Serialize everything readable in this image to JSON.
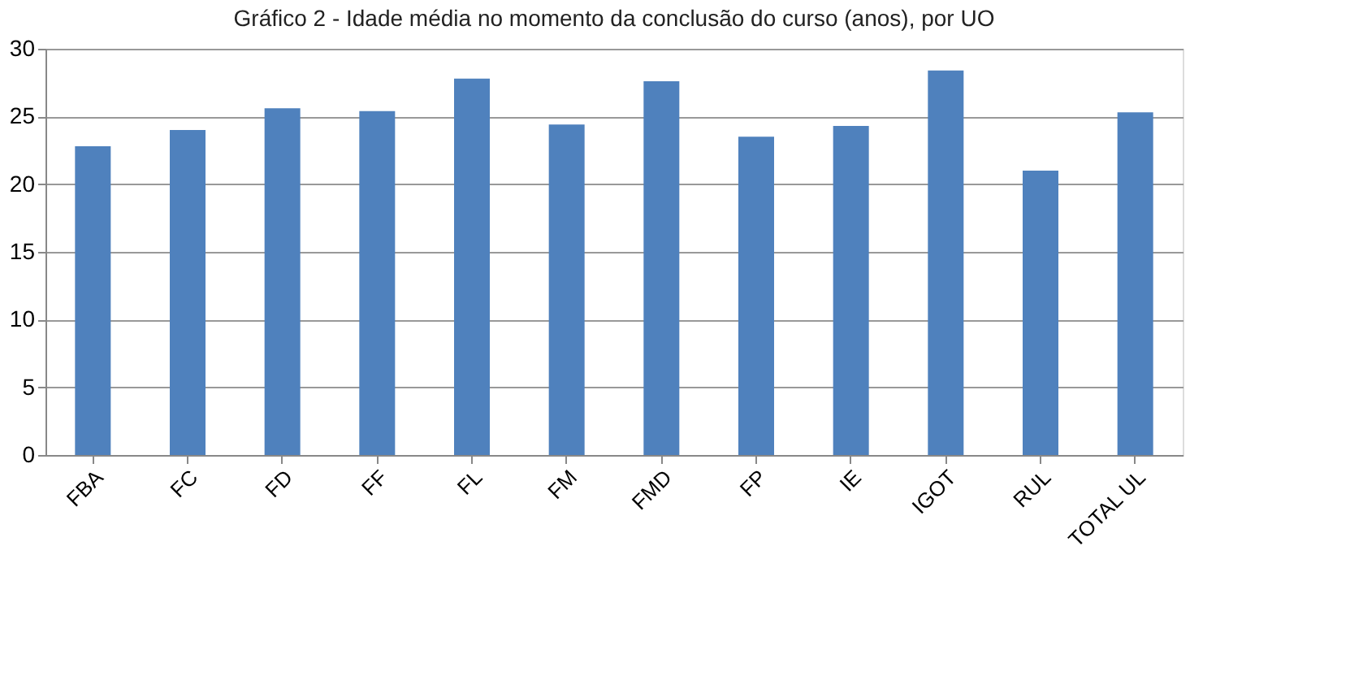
{
  "chart_data": {
    "type": "bar",
    "title": "Gráfico 2 - Idade média no momento da conclusão do curso (anos), por UO",
    "categories": [
      "FBA",
      "FC",
      "FD",
      "FF",
      "FL",
      "FM",
      "FMD",
      "FP",
      "IE",
      "IGOT",
      "RUL",
      "TOTAL UL"
    ],
    "values": [
      22.8,
      24.0,
      25.6,
      25.4,
      27.8,
      24.4,
      27.6,
      23.5,
      24.3,
      28.4,
      21.0,
      25.3
    ],
    "color": "#4f81bd",
    "ylim": [
      0,
      30
    ],
    "yticks": [
      0,
      5,
      10,
      15,
      20,
      25,
      30
    ],
    "grid": "y"
  }
}
